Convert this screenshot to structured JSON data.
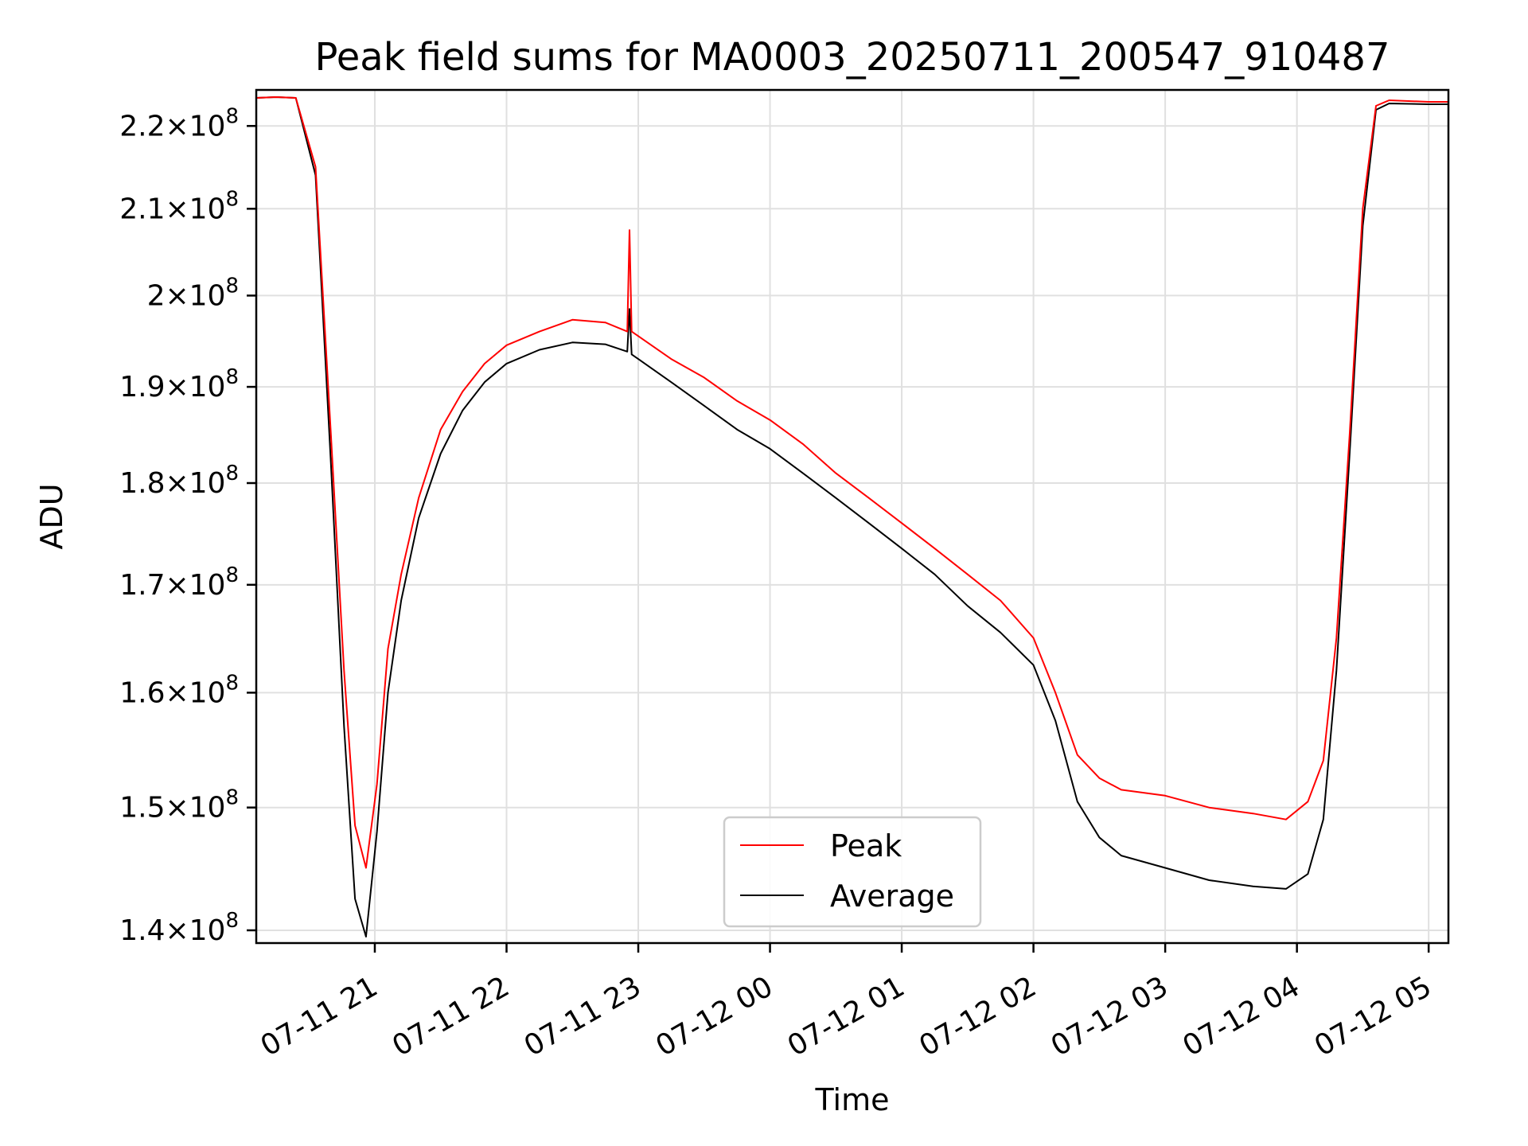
{
  "chart_data": {
    "type": "line",
    "title": "Peak field sums for MA0003_20250711_200547_910487",
    "xlabel": "Time",
    "ylabel": "ADU",
    "yscale": "log",
    "ylim": [
      139000000,
      224500000
    ],
    "xlim": [
      "07-11 20:06",
      "07-12 05:09"
    ],
    "grid": true,
    "legend_position": "lower center",
    "x_ticks": [
      "07-11 21",
      "07-11 22",
      "07-11 23",
      "07-12 00",
      "07-12 01",
      "07-12 02",
      "07-12 03",
      "07-12 04",
      "07-12 05"
    ],
    "y_ticks": [
      {
        "value": 140000000,
        "mantissa": "1.4"
      },
      {
        "value": 150000000,
        "mantissa": "1.5"
      },
      {
        "value": 160000000,
        "mantissa": "1.6"
      },
      {
        "value": 170000000,
        "mantissa": "1.7"
      },
      {
        "value": 180000000,
        "mantissa": "1.8"
      },
      {
        "value": 190000000,
        "mantissa": "1.9"
      },
      {
        "value": 200000000,
        "mantissa": "2"
      },
      {
        "value": 210000000,
        "mantissa": "2.1"
      },
      {
        "value": 220000000,
        "mantissa": "2.2"
      }
    ],
    "tick_exponent": "8",
    "series": [
      {
        "name": "Peak",
        "color": "#ff0000",
        "x": [
          "07-11 20:06",
          "07-11 20:15",
          "07-11 20:24",
          "07-11 20:33",
          "07-11 20:40",
          "07-11 20:46",
          "07-11 20:51",
          "07-11 20:56",
          "07-11 21:01",
          "07-11 21:06",
          "07-11 21:12",
          "07-11 21:20",
          "07-11 21:30",
          "07-11 21:40",
          "07-11 21:50",
          "07-11 22:00",
          "07-11 22:15",
          "07-11 22:30",
          "07-11 22:45",
          "07-11 22:55",
          "07-11 22:56",
          "07-11 22:57",
          "07-11 23:00",
          "07-11 23:15",
          "07-11 23:30",
          "07-11 23:45",
          "07-12 00:00",
          "07-12 00:15",
          "07-12 00:30",
          "07-12 00:45",
          "07-12 01:00",
          "07-12 01:15",
          "07-12 01:30",
          "07-12 01:45",
          "07-12 02:00",
          "07-12 02:10",
          "07-12 02:20",
          "07-12 02:30",
          "07-12 02:40",
          "07-12 03:00",
          "07-12 03:20",
          "07-12 03:40",
          "07-12 03:55",
          "07-12 04:05",
          "07-12 04:12",
          "07-12 04:18",
          "07-12 04:24",
          "07-12 04:30",
          "07-12 04:36",
          "07-12 04:42",
          "07-12 05:00",
          "07-12 05:09"
        ],
        "y": [
          223500000,
          223600000,
          223500000,
          215000000,
          185000000,
          162000000,
          148500000,
          145000000,
          152000000,
          164000000,
          171000000,
          178500000,
          185500000,
          189500000,
          192500000,
          194500000,
          196000000,
          197300000,
          197000000,
          196000000,
          207500000,
          196000000,
          195500000,
          193000000,
          191000000,
          188500000,
          186500000,
          184000000,
          181000000,
          178500000,
          176000000,
          173500000,
          171000000,
          168500000,
          165000000,
          160000000,
          154500000,
          152500000,
          151500000,
          151000000,
          150000000,
          149500000,
          149000000,
          150500000,
          154000000,
          165000000,
          185000000,
          210000000,
          222500000,
          223200000,
          223000000,
          223000000
        ]
      },
      {
        "name": "Average",
        "color": "#000000",
        "x": [
          "07-11 20:06",
          "07-11 20:15",
          "07-11 20:24",
          "07-11 20:33",
          "07-11 20:40",
          "07-11 20:46",
          "07-11 20:51",
          "07-11 20:56",
          "07-11 21:01",
          "07-11 21:06",
          "07-11 21:12",
          "07-11 21:20",
          "07-11 21:30",
          "07-11 21:40",
          "07-11 21:50",
          "07-11 22:00",
          "07-11 22:15",
          "07-11 22:30",
          "07-11 22:45",
          "07-11 22:55",
          "07-11 22:56",
          "07-11 22:57",
          "07-11 23:00",
          "07-11 23:15",
          "07-11 23:30",
          "07-11 23:45",
          "07-12 00:00",
          "07-12 00:15",
          "07-12 00:30",
          "07-12 00:45",
          "07-12 01:00",
          "07-12 01:15",
          "07-12 01:30",
          "07-12 01:45",
          "07-12 02:00",
          "07-12 02:10",
          "07-12 02:20",
          "07-12 02:30",
          "07-12 02:40",
          "07-12 03:00",
          "07-12 03:20",
          "07-12 03:40",
          "07-12 03:55",
          "07-12 04:05",
          "07-12 04:12",
          "07-12 04:18",
          "07-12 04:24",
          "07-12 04:30",
          "07-12 04:36",
          "07-12 04:42",
          "07-12 05:00",
          "07-12 05:09"
        ],
        "y": [
          223500000,
          223600000,
          223500000,
          214000000,
          182000000,
          157000000,
          142500000,
          139500000,
          148000000,
          160000000,
          168500000,
          176500000,
          183000000,
          187500000,
          190500000,
          192500000,
          194000000,
          194800000,
          194600000,
          193800000,
          198500000,
          193500000,
          193000000,
          190500000,
          188000000,
          185500000,
          183500000,
          181000000,
          178500000,
          176000000,
          173500000,
          171000000,
          168000000,
          165500000,
          162500000,
          157500000,
          150500000,
          147500000,
          146000000,
          145000000,
          144000000,
          143500000,
          143300000,
          144500000,
          149000000,
          162000000,
          183000000,
          208000000,
          222000000,
          222800000,
          222700000,
          222700000
        ]
      }
    ]
  }
}
